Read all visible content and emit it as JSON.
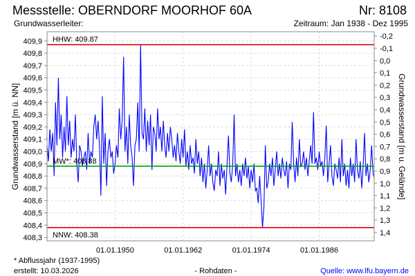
{
  "header": {
    "title": "Messstelle: OBERNDORF MOORHOF 60A",
    "number": "Nr: 8108",
    "aquifer": "Grundwasserleiter:",
    "period": "Zeitraum: Jan 1938 - Dez 1995"
  },
  "footer": {
    "note": "* Abflussjahr (1937-1995)",
    "created": "erstellt:  10.03.2026",
    "raw": "- Rohdaten -",
    "source": "Quelle: www.lfu.bayern.de"
  },
  "colors": {
    "series": "#0000ff",
    "extreme": "#e00000",
    "mean": "#00a000",
    "source_link": "#0000ff"
  },
  "chart_data": {
    "type": "line",
    "ylabel": "Grundwasserstand [m ü. NN]",
    "y2label": "Grundwasserstand [m u. Gelände]",
    "ylim": [
      408.27,
      409.97
    ],
    "xlim": [
      1938.0,
      1995.7
    ],
    "y_ticks": [
      409.9,
      409.8,
      409.7,
      409.6,
      409.5,
      409.4,
      409.3,
      409.2,
      409.1,
      409.0,
      408.9,
      408.8,
      408.7,
      408.6,
      408.5,
      408.4,
      408.3
    ],
    "y_tick_labels": [
      "409,9",
      "409,8",
      "409,7",
      "409,6",
      "409,5",
      "409,4",
      "409,3",
      "409,2",
      "409,1",
      "409,0",
      "408,9",
      "408,8",
      "408,7",
      "408,6",
      "408,5",
      "408,4",
      "408,3"
    ],
    "ground_level": 409.74,
    "y2_ticks": [
      -0.2,
      -0.1,
      0.0,
      0.1,
      0.2,
      0.3,
      0.4,
      0.5,
      0.6,
      0.7,
      0.8,
      0.9,
      1.0,
      1.1,
      1.2,
      1.3,
      1.4
    ],
    "y2_tick_labels": [
      "-0,2",
      "-0,1",
      "0,0",
      "0,1",
      "0,2",
      "0,3",
      "0,4",
      "0,5",
      "0,6",
      "0,7",
      "0,8",
      "0,9",
      "1,0",
      "1,1",
      "1,2",
      "1,3",
      "1,4"
    ],
    "x_ticks": [
      1950.0,
      1962.0,
      1974.0,
      1986.0
    ],
    "x_tick_labels": [
      "01.01.1950",
      "01.01.1962",
      "01.01.1974",
      "01.01.1986"
    ],
    "grid": true,
    "reference_lines": [
      {
        "name": "HHW",
        "label": "HHW: 409.87",
        "value": 409.87,
        "kind": "extreme"
      },
      {
        "name": "MW",
        "label": "MW*: 408.88",
        "value": 408.88,
        "kind": "mean"
      },
      {
        "name": "NNW",
        "label": "NNW: 408.38",
        "value": 408.38,
        "kind": "extreme"
      }
    ],
    "series": [
      {
        "name": "Grundwasserstand",
        "x_start": 1938.0,
        "x_step": 0.25,
        "values": [
          409.05,
          408.92,
          409.18,
          409.0,
          409.15,
          408.8,
          409.4,
          409.05,
          409.6,
          409.1,
          409.3,
          408.95,
          409.2,
          409.0,
          409.45,
          409.05,
          409.25,
          408.95,
          409.1,
          409.0,
          409.3,
          408.9,
          408.75,
          409.05,
          409.0,
          408.88,
          408.95,
          409.0,
          408.85,
          409.15,
          408.9,
          409.0,
          408.95,
          409.2,
          409.3,
          409.1,
          409.25,
          409.05,
          408.64,
          409.45,
          408.9,
          409.15,
          408.72,
          409.0,
          409.1,
          408.95,
          409.0,
          408.82,
          408.9,
          409.05,
          408.95,
          409.35,
          409.1,
          409.25,
          409.77,
          409.0,
          409.2,
          408.9,
          409.3,
          409.05,
          408.95,
          408.72,
          409.05,
          409.1,
          409.4,
          409.0,
          409.87,
          409.15,
          409.1,
          409.35,
          409.0,
          409.25,
          409.05,
          409.3,
          408.85,
          409.2,
          409.15,
          409.0,
          409.35,
          409.1,
          409.2,
          409.0,
          409.25,
          409.05,
          408.95,
          409.15,
          409.0,
          409.2,
          409.1,
          408.95,
          409.05,
          408.92,
          409.15,
          409.0,
          408.9,
          409.1,
          408.95,
          409.18,
          408.88,
          409.0,
          408.85,
          409.05,
          408.9,
          408.95,
          408.82,
          409.1,
          408.9,
          409.0,
          408.8,
          408.95,
          408.75,
          408.9,
          408.7,
          408.85,
          409.05,
          408.8,
          408.9,
          408.75,
          408.68,
          408.85,
          408.8,
          409.0,
          408.72,
          408.9,
          408.78,
          408.85,
          408.65,
          408.9,
          409.13,
          408.82,
          408.75,
          408.9,
          409.3,
          408.8,
          408.9,
          408.75,
          408.85,
          408.72,
          408.9,
          408.8,
          408.95,
          408.78,
          408.88,
          408.7,
          408.85,
          408.75,
          408.9,
          408.68,
          408.7,
          408.58,
          408.8,
          408.6,
          408.38,
          408.55,
          409.05,
          408.7,
          408.75,
          408.9,
          408.8,
          408.95,
          408.72,
          408.85,
          409.0,
          408.8,
          408.9,
          408.78,
          408.95,
          408.85,
          408.8,
          408.92,
          408.7,
          408.9,
          408.85,
          409.24,
          408.9,
          408.75,
          408.95,
          408.8,
          409.1,
          408.88,
          408.9,
          409.0,
          408.85,
          408.95,
          408.8,
          408.92,
          409.05,
          408.9,
          409.32,
          408.9,
          408.95,
          408.85,
          409.0,
          408.88,
          408.92,
          408.8,
          408.95,
          409.21,
          408.75,
          408.9,
          409.05,
          408.8,
          408.72,
          408.9,
          408.85,
          408.78,
          408.95,
          408.75,
          409.1,
          408.8,
          408.9,
          408.72,
          408.85,
          408.7,
          408.95,
          408.8,
          408.9,
          408.75,
          409.1,
          408.85,
          408.78,
          408.92,
          408.7,
          408.88,
          409.15,
          408.8,
          408.9,
          408.75,
          408.85,
          409.05,
          408.82,
          408.78
        ]
      }
    ]
  }
}
